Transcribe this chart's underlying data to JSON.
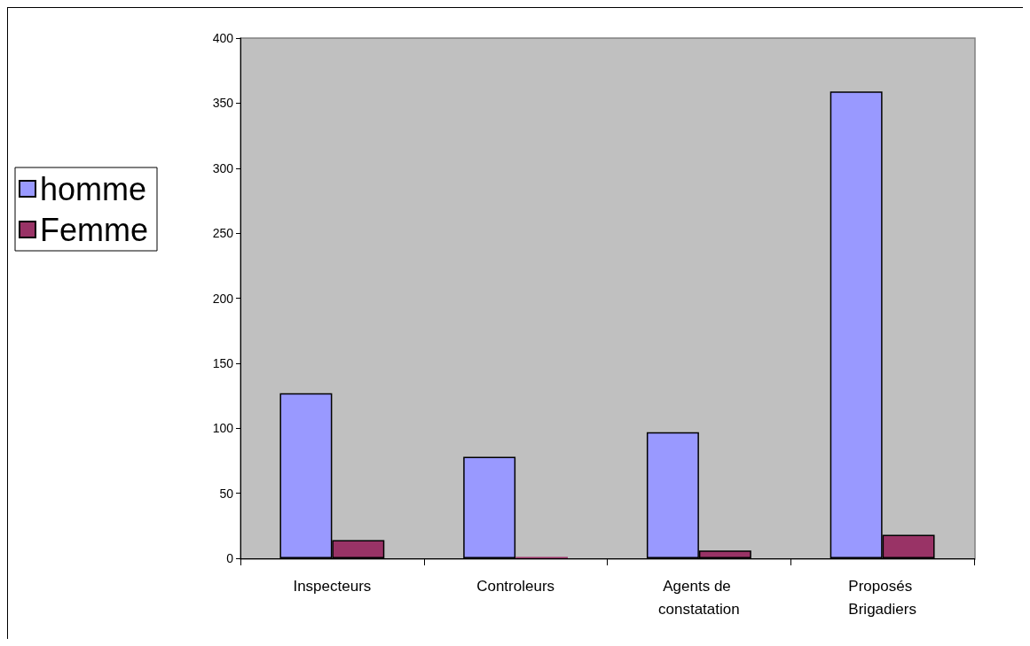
{
  "chart_data": {
    "type": "bar",
    "categories": [
      "Inspecteurs",
      "Controleurs",
      "Agents de constatation",
      "Proposés Brigadiers"
    ],
    "series": [
      {
        "name": "homme",
        "color": "#9999ff",
        "values": [
          127,
          78,
          97,
          359
        ]
      },
      {
        "name": "Femme",
        "color": "#993366",
        "values": [
          14,
          1,
          6,
          18
        ]
      }
    ],
    "ylim": [
      0,
      400
    ],
    "yticks": [
      0,
      50,
      100,
      150,
      200,
      250,
      300,
      350,
      400
    ],
    "grid": false,
    "legend": "left"
  }
}
